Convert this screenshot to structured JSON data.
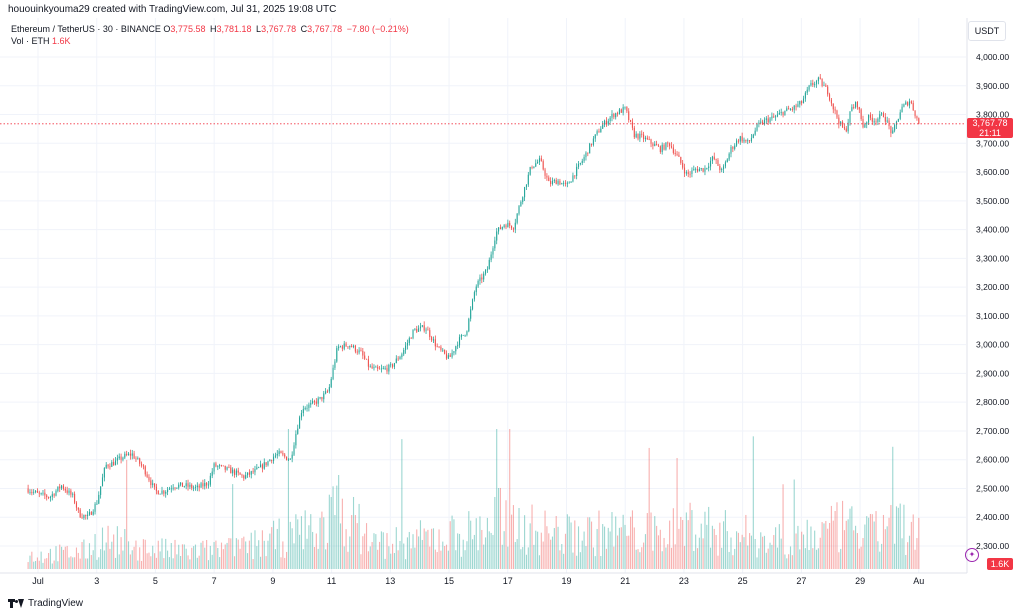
{
  "caption": "hououinkyouma29 created with TradingView.com, Jul 31, 2025 19:08 UTC",
  "symbol_line": "Ethereum / TetherUS · 30 · BINANCE",
  "ohlc": {
    "o_label": "O",
    "o_value": "3,775.58",
    "h_label": "H",
    "h_value": "3,781.18",
    "l_label": "L",
    "l_value": "3,767.78",
    "c_label": "C",
    "c_value": "3,767.78",
    "change": "−7.80 (−0.21%)"
  },
  "volume_line": {
    "label": "Vol · ETH",
    "value": "1.6K"
  },
  "currency": "USDT",
  "last_price": {
    "price": "3,767.78",
    "countdown": "21:11"
  },
  "volume_tag": "1.6K",
  "footer_brand": "TradingView",
  "colors": {
    "up": "#26a69a",
    "down": "#ef5350",
    "last": "#f23645",
    "grid": "#f0f3fa"
  },
  "chart_data": {
    "type": "candlestick",
    "x_tick_labels": [
      "Jul",
      "3",
      "5",
      "7",
      "9",
      "11",
      "13",
      "15",
      "17",
      "19",
      "21",
      "23",
      "25",
      "27",
      "29",
      "Au"
    ],
    "y_tick_labels": [
      "2,300.00",
      "2,400.00",
      "2,500.00",
      "2,600.00",
      "2,700.00",
      "2,800.00",
      "2,900.00",
      "3,000.00",
      "3,100.00",
      "3,200.00",
      "3,300.00",
      "3,400.00",
      "3,500.00",
      "3,600.00",
      "3,700.00",
      "3,800.00",
      "3,900.00",
      "4,000.00"
    ],
    "y_ticks": [
      2300,
      2400,
      2500,
      2600,
      2700,
      2800,
      2900,
      3000,
      3100,
      3200,
      3300,
      3400,
      3500,
      3600,
      3700,
      3800,
      3900,
      4000
    ],
    "ylim": [
      2250,
      4050
    ],
    "x_range_days": [
      0.6,
      31.0
    ],
    "grid": true,
    "last_price_value": 3767.78,
    "price_path_day": [
      0.6,
      1.0,
      1.4,
      1.8,
      2.2,
      2.4,
      2.7,
      3.0,
      3.3,
      3.6,
      3.9,
      4.2,
      4.6,
      5.0,
      5.3,
      5.6,
      6.0,
      6.4,
      6.8,
      7.0,
      7.3,
      7.6,
      8.0,
      8.4,
      8.8,
      9.0,
      9.2,
      9.6,
      9.8,
      10.0,
      10.3,
      10.6,
      10.9,
      11.2,
      11.6,
      12.0,
      12.3,
      12.6,
      13.0,
      13.4,
      13.8,
      14.2,
      14.6,
      15.0,
      15.3,
      15.6,
      15.9,
      16.3,
      16.6,
      16.9,
      17.2,
      17.5,
      17.8,
      18.1,
      18.4,
      18.7,
      19.0,
      19.3,
      19.6,
      19.9,
      20.2,
      20.6,
      21.0,
      21.3,
      21.6,
      21.9,
      22.2,
      22.5,
      22.8,
      23.1,
      23.4,
      23.7,
      24.0,
      24.3,
      24.6,
      24.9,
      25.2,
      25.5,
      25.8,
      26.1,
      26.4,
      26.7,
      27.0,
      27.3,
      27.6,
      27.9,
      28.1,
      28.3,
      28.5,
      28.7,
      28.9,
      29.1,
      29.3,
      29.5,
      29.8,
      30.1,
      30.4,
      30.7,
      31.0
    ],
    "price_path_close": [
      2500,
      2480,
      2470,
      2510,
      2470,
      2410,
      2400,
      2450,
      2580,
      2590,
      2610,
      2620,
      2570,
      2490,
      2490,
      2510,
      2510,
      2500,
      2520,
      2580,
      2570,
      2560,
      2540,
      2560,
      2590,
      2610,
      2620,
      2600,
      2700,
      2780,
      2790,
      2810,
      2840,
      2990,
      3000,
      2970,
      2920,
      2910,
      2920,
      2970,
      3050,
      3060,
      2990,
      2950,
      3010,
      3050,
      3200,
      3260,
      3390,
      3420,
      3410,
      3520,
      3620,
      3640,
      3560,
      3570,
      3550,
      3600,
      3650,
      3710,
      3760,
      3800,
      3820,
      3730,
      3720,
      3700,
      3680,
      3700,
      3650,
      3590,
      3610,
      3610,
      3650,
      3600,
      3680,
      3720,
      3700,
      3760,
      3780,
      3790,
      3810,
      3820,
      3840,
      3900,
      3920,
      3880,
      3820,
      3770,
      3740,
      3820,
      3840,
      3760,
      3790,
      3780,
      3800,
      3730,
      3820,
      3850,
      3767.78
    ],
    "volume_path_day": [
      0.6,
      2.5,
      3.2,
      4.5,
      6.0,
      8.0,
      9.6,
      10.9,
      11.1,
      12.5,
      14.0,
      16.0,
      16.9,
      17.3,
      19.0,
      21.0,
      22.0,
      23.4,
      24.0,
      26.0,
      27.5,
      28.4,
      29.5,
      30.0,
      31.0
    ],
    "volume_path_value": [
      0.6,
      0.8,
      1.4,
      1.0,
      0.8,
      1.0,
      1.6,
      2.2,
      3.0,
      1.2,
      1.4,
      1.8,
      2.6,
      2.0,
      1.6,
      1.8,
      1.6,
      2.2,
      1.8,
      1.4,
      1.6,
      2.0,
      1.6,
      2.4,
      1.6
    ],
    "volume_max": 6.0
  }
}
